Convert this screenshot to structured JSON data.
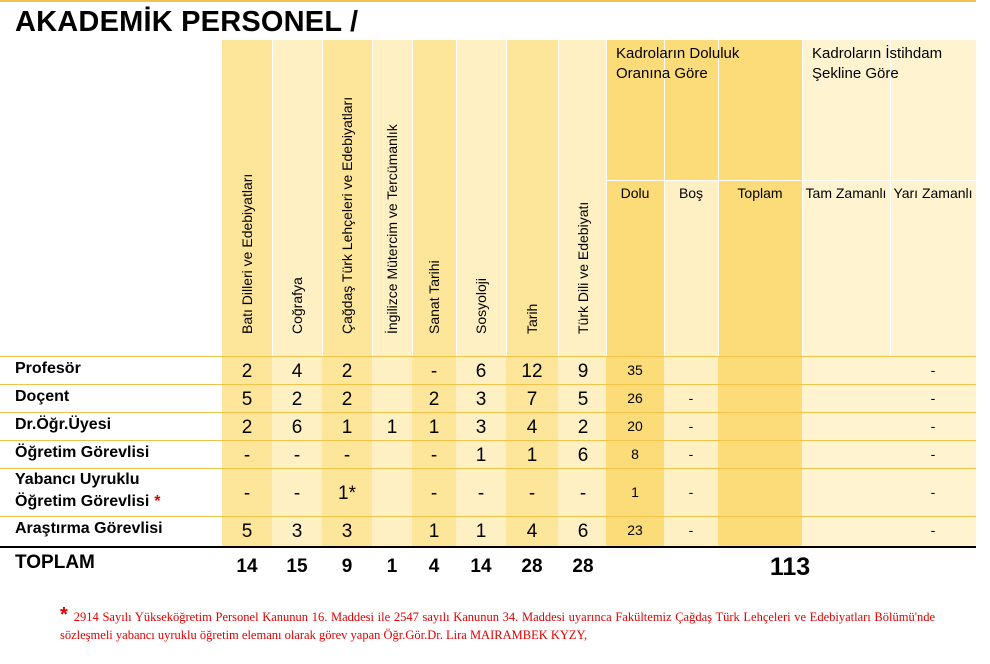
{
  "title": "AKADEMİK PERSONEL /",
  "departments": [
    "Batı Dilleri ve Edebiyatları",
    "Coğrafya",
    "Çağdaş Türk Lehçeleri ve Edebiyatları",
    "İngilizce Mütercim ve Tercümanlık",
    "Sanat Tarihi",
    "Sosyoloji",
    "Tarih",
    "Türk Dili ve Edebiyatı"
  ],
  "group_occupancy": {
    "label": "Kadroların Doluluk Oranına Göre",
    "cols": [
      "Dolu",
      "Boş",
      "Toplam"
    ]
  },
  "group_employment": {
    "label": "Kadroların İstihdam Şekline Göre",
    "cols": [
      "Tam Zamanlı",
      "Yarı Zamanlı"
    ]
  },
  "rows": [
    {
      "label": "Profesör",
      "values": [
        "2",
        "4",
        "2",
        "",
        "-",
        "6",
        "12",
        "9"
      ],
      "dolu": "35",
      "bos": "",
      "toplam": "",
      "tam": "",
      "yari": "-"
    },
    {
      "label": "Doçent",
      "values": [
        "5",
        "2",
        "2",
        "",
        "2",
        "3",
        "7",
        "5"
      ],
      "dolu": "26",
      "bos": "-",
      "toplam": "",
      "tam": "",
      "yari": "-"
    },
    {
      "label": "Dr.Öğr.Üyesi",
      "values": [
        "2",
        "6",
        "1",
        "1",
        "1",
        "3",
        "4",
        "2"
      ],
      "dolu": "20",
      "bos": "-",
      "toplam": "",
      "tam": "",
      "yari": "-"
    },
    {
      "label": "Öğretim Görevlisi",
      "values": [
        "-",
        "-",
        "-",
        "",
        "-",
        "1",
        "1",
        "6"
      ],
      "dolu": "8",
      "bos": "-",
      "toplam": "",
      "tam": "",
      "yari": "-"
    },
    {
      "label": "Yabancı Uyruklu",
      "label2": "Öğretim Görevlisi",
      "star": "*",
      "values": [
        "-",
        "-",
        "1*",
        "",
        "-",
        "-",
        "-",
        "-"
      ],
      "dolu": "1",
      "bos": "-",
      "toplam": "",
      "tam": "",
      "yari": "-"
    },
    {
      "label": "Araştırma Görevlisi",
      "values": [
        "5",
        "3",
        "3",
        "",
        "1",
        "1",
        "4",
        "6"
      ],
      "dolu": "23",
      "bos": "-",
      "toplam": "",
      "tam": "",
      "yari": "-"
    }
  ],
  "totals": {
    "label": "TOPLAM",
    "values": [
      "14",
      "15",
      "9",
      "1",
      "4",
      "14",
      "28",
      "28"
    ],
    "grand": "113"
  },
  "footnote": {
    "star": "*",
    "text": "2914 Sayılı Yükseköğretim Personel Kanunun 16. Maddesi ile 2547 sayılı Kanunun 34. Maddesi uyarınca Fakültemiz Çağdaş Türk Lehçeleri ve Edebiyatları Bölümü'nde sözleşmeli yabancı uyruklu öğretim elemanı olarak görev yapan Öğr.Gör.Dr. Lira MAIRAMBEK KYZY,"
  }
}
